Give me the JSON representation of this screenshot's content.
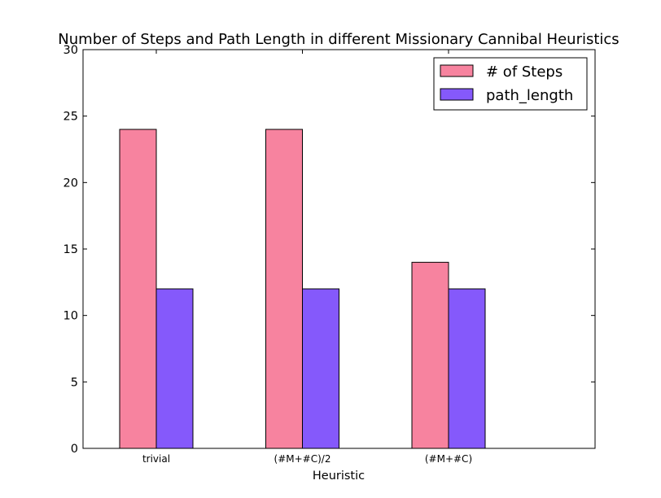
{
  "chart_data": {
    "type": "bar",
    "title": "Number of Steps and Path Length in different Missionary Cannibal Heuristics",
    "xlabel": "Heuristic",
    "ylabel": "",
    "categories": [
      "trivial",
      "(#M+#C)/2",
      "(#M+#C)"
    ],
    "series": [
      {
        "name": "# of Steps",
        "values": [
          24,
          24,
          14
        ],
        "color": "#f7839f"
      },
      {
        "name": "path_length",
        "values": [
          12,
          12,
          12
        ],
        "color": "#8559fb"
      }
    ],
    "ylim": [
      0,
      30
    ],
    "yticks": [
      "0",
      "5",
      "10",
      "15",
      "20",
      "25",
      "30"
    ],
    "grid": false,
    "legend": "top-right"
  }
}
